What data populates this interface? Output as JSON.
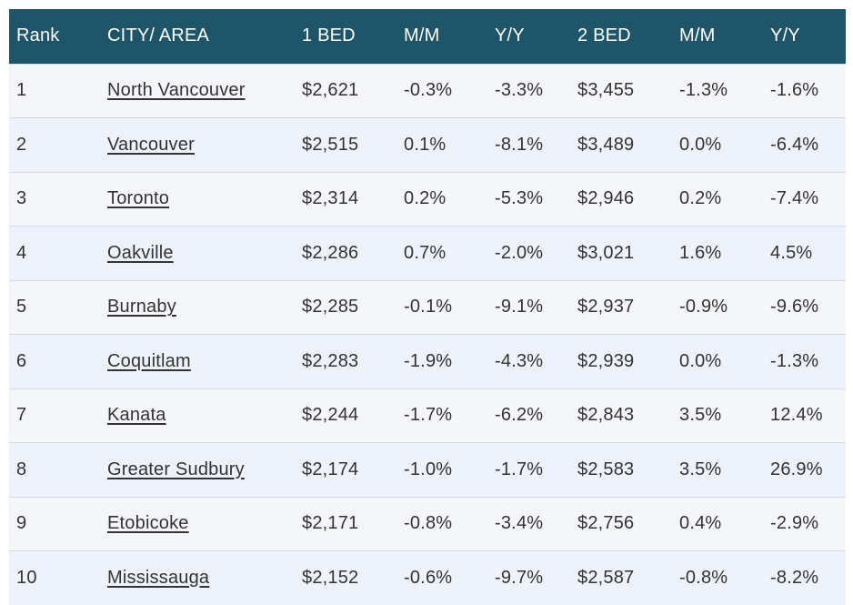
{
  "table": {
    "headers": [
      "Rank",
      "CITY/ AREA",
      "1 BED",
      "M/M",
      "Y/Y",
      "2 BED",
      "M/M",
      "Y/Y"
    ],
    "rows": [
      {
        "rank": "1",
        "city": "North Vancouver",
        "bed1": "$2,621",
        "bed1_mm": "-0.3%",
        "bed1_yy": "-3.3%",
        "bed2": "$3,455",
        "bed2_mm": "-1.3%",
        "bed2_yy": "-1.6%"
      },
      {
        "rank": "2",
        "city": "Vancouver",
        "bed1": "$2,515",
        "bed1_mm": "0.1%",
        "bed1_yy": "-8.1%",
        "bed2": "$3,489",
        "bed2_mm": "0.0%",
        "bed2_yy": "-6.4%"
      },
      {
        "rank": "3",
        "city": "Toronto",
        "bed1": "$2,314",
        "bed1_mm": "0.2%",
        "bed1_yy": "-5.3%",
        "bed2": "$2,946",
        "bed2_mm": "0.2%",
        "bed2_yy": "-7.4%"
      },
      {
        "rank": "4",
        "city": "Oakville",
        "bed1": "$2,286",
        "bed1_mm": "0.7%",
        "bed1_yy": "-2.0%",
        "bed2": "$3,021",
        "bed2_mm": "1.6%",
        "bed2_yy": "4.5%"
      },
      {
        "rank": "5",
        "city": "Burnaby",
        "bed1": "$2,285",
        "bed1_mm": "-0.1%",
        "bed1_yy": "-9.1%",
        "bed2": "$2,937",
        "bed2_mm": "-0.9%",
        "bed2_yy": "-9.6%"
      },
      {
        "rank": "6",
        "city": "Coquitlam",
        "bed1": "$2,283",
        "bed1_mm": "-1.9%",
        "bed1_yy": "-4.3%",
        "bed2": "$2,939",
        "bed2_mm": "0.0%",
        "bed2_yy": "-1.3%"
      },
      {
        "rank": "7",
        "city": "Kanata",
        "bed1": "$2,244",
        "bed1_mm": "-1.7%",
        "bed1_yy": "-6.2%",
        "bed2": "$2,843",
        "bed2_mm": "3.5%",
        "bed2_yy": "12.4%"
      },
      {
        "rank": "8",
        "city": "Greater Sudbury",
        "bed1": "$2,174",
        "bed1_mm": "-1.0%",
        "bed1_yy": "-1.7%",
        "bed2": "$2,583",
        "bed2_mm": "3.5%",
        "bed2_yy": "26.9%"
      },
      {
        "rank": "9",
        "city": "Etobicoke",
        "bed1": "$2,171",
        "bed1_mm": "-0.8%",
        "bed1_yy": "-3.4%",
        "bed2": "$2,756",
        "bed2_mm": "0.4%",
        "bed2_yy": "-2.9%"
      },
      {
        "rank": "10",
        "city": "Mississauga",
        "bed1": "$2,152",
        "bed1_mm": "-0.6%",
        "bed1_yy": "-9.7%",
        "bed2": "$2,587",
        "bed2_mm": "-0.8%",
        "bed2_yy": "-8.2%"
      }
    ]
  },
  "colors": {
    "header_bg": "#1f5568",
    "header_text": "#ffffff",
    "row_odd": "#f4f6f9",
    "row_even": "#eef2fa",
    "text": "#333333"
  }
}
